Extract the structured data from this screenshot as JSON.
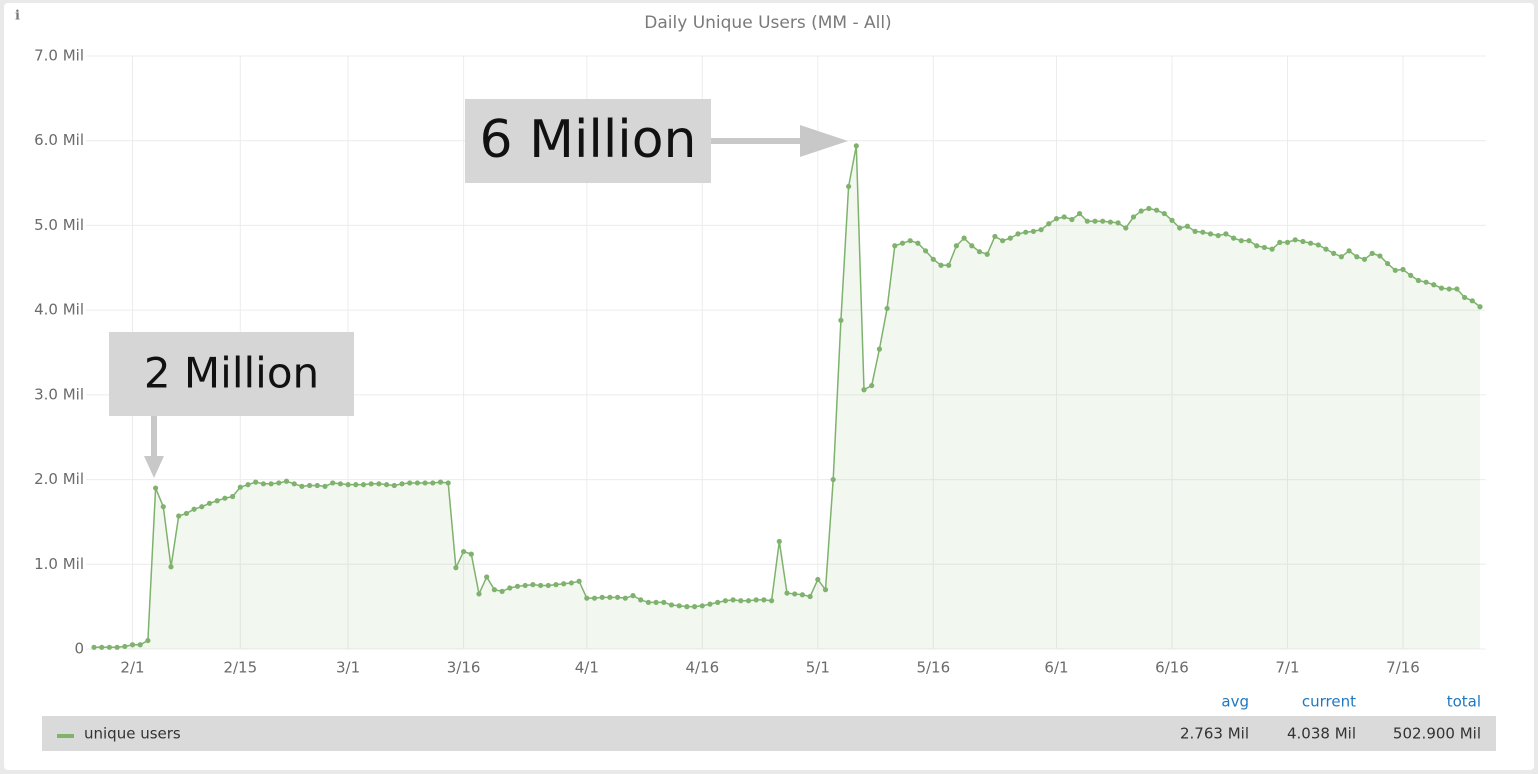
{
  "info_icon": "i",
  "chart_data": {
    "type": "line",
    "title": "Daily Unique Users (MM - All)",
    "x": [
      "1/27",
      "1/28",
      "1/29",
      "1/30",
      "1/31",
      "2/1",
      "2/2",
      "2/3",
      "2/4",
      "2/5",
      "2/6",
      "2/7",
      "2/8",
      "2/9",
      "2/10",
      "2/11",
      "2/12",
      "2/13",
      "2/14",
      "2/15",
      "2/16",
      "2/17",
      "2/18",
      "2/19",
      "2/20",
      "2/21",
      "2/22",
      "2/23",
      "2/24",
      "2/25",
      "2/26",
      "2/27",
      "2/28",
      "3/1",
      "3/2",
      "3/3",
      "3/4",
      "3/5",
      "3/6",
      "3/7",
      "3/8",
      "3/9",
      "3/10",
      "3/11",
      "3/12",
      "3/13",
      "3/14",
      "3/15",
      "3/16",
      "3/17",
      "3/18",
      "3/19",
      "3/20",
      "3/21",
      "3/22",
      "3/23",
      "3/24",
      "3/25",
      "3/26",
      "3/27",
      "3/28",
      "3/29",
      "3/30",
      "3/31",
      "4/1",
      "4/2",
      "4/3",
      "4/4",
      "4/5",
      "4/6",
      "4/7",
      "4/8",
      "4/9",
      "4/10",
      "4/11",
      "4/12",
      "4/13",
      "4/14",
      "4/15",
      "4/16",
      "4/17",
      "4/18",
      "4/19",
      "4/20",
      "4/21",
      "4/22",
      "4/23",
      "4/24",
      "4/25",
      "4/26",
      "4/27",
      "4/28",
      "4/29",
      "4/30",
      "5/1",
      "5/2",
      "5/3",
      "5/4",
      "5/5",
      "5/6",
      "5/7",
      "5/8",
      "5/9",
      "5/10",
      "5/11",
      "5/12",
      "5/13",
      "5/14",
      "5/15",
      "5/16",
      "5/17",
      "5/18",
      "5/19",
      "5/20",
      "5/21",
      "5/22",
      "5/23",
      "5/24",
      "5/25",
      "5/26",
      "5/27",
      "5/28",
      "5/29",
      "5/30",
      "5/31",
      "6/1",
      "6/2",
      "6/3",
      "6/4",
      "6/5",
      "6/6",
      "6/7",
      "6/8",
      "6/9",
      "6/10",
      "6/11",
      "6/12",
      "6/13",
      "6/14",
      "6/15",
      "6/16",
      "6/17",
      "6/18",
      "6/19",
      "6/20",
      "6/21",
      "6/22",
      "6/23",
      "6/24",
      "6/25",
      "6/26",
      "6/27",
      "6/28",
      "6/29",
      "6/30",
      "7/1",
      "7/2",
      "7/3",
      "7/4",
      "7/5",
      "7/6",
      "7/7",
      "7/8",
      "7/9",
      "7/10",
      "7/11",
      "7/12",
      "7/13",
      "7/14",
      "7/15",
      "7/16",
      "7/17",
      "7/18",
      "7/19",
      "7/20",
      "7/21",
      "7/22",
      "7/23",
      "7/24",
      "7/25",
      "7/26"
    ],
    "series": [
      {
        "name": "unique users",
        "color": "#7eb26d",
        "values": [
          0.02,
          0.02,
          0.02,
          0.02,
          0.03,
          0.05,
          0.05,
          0.1,
          1.9,
          1.68,
          0.97,
          1.57,
          1.6,
          1.65,
          1.68,
          1.72,
          1.75,
          1.78,
          1.8,
          1.91,
          1.94,
          1.97,
          1.95,
          1.95,
          1.96,
          1.98,
          1.95,
          1.92,
          1.93,
          1.93,
          1.92,
          1.96,
          1.95,
          1.94,
          1.94,
          1.94,
          1.95,
          1.95,
          1.94,
          1.93,
          1.95,
          1.96,
          1.96,
          1.96,
          1.96,
          1.97,
          1.96,
          0.96,
          1.15,
          1.12,
          0.65,
          0.85,
          0.7,
          0.68,
          0.72,
          0.74,
          0.75,
          0.76,
          0.75,
          0.75,
          0.76,
          0.77,
          0.78,
          0.8,
          0.6,
          0.6,
          0.61,
          0.61,
          0.61,
          0.6,
          0.63,
          0.58,
          0.55,
          0.55,
          0.55,
          0.52,
          0.51,
          0.5,
          0.5,
          0.51,
          0.53,
          0.55,
          0.57,
          0.58,
          0.57,
          0.57,
          0.58,
          0.58,
          0.57,
          1.27,
          0.66,
          0.65,
          0.64,
          0.62,
          0.82,
          0.7,
          2.0,
          3.88,
          5.46,
          5.94,
          3.06,
          3.11,
          3.54,
          4.02,
          4.76,
          4.79,
          4.82,
          4.79,
          4.7,
          4.6,
          4.53,
          4.53,
          4.76,
          4.85,
          4.76,
          4.69,
          4.66,
          4.87,
          4.82,
          4.85,
          4.9,
          4.92,
          4.93,
          4.95,
          5.02,
          5.08,
          5.1,
          5.07,
          5.14,
          5.05,
          5.05,
          5.05,
          5.04,
          5.03,
          4.97,
          5.1,
          5.17,
          5.2,
          5.18,
          5.14,
          5.06,
          4.97,
          4.99,
          4.93,
          4.92,
          4.9,
          4.88,
          4.9,
          4.85,
          4.82,
          4.82,
          4.76,
          4.74,
          4.72,
          4.8,
          4.8,
          4.83,
          4.81,
          4.79,
          4.77,
          4.72,
          4.67,
          4.63,
          4.7,
          4.63,
          4.6,
          4.67,
          4.64,
          4.55,
          4.47,
          4.48,
          4.41,
          4.35,
          4.33,
          4.3,
          4.26,
          4.25,
          4.25,
          4.15,
          4.11,
          4.04
        ]
      }
    ],
    "xticks": [
      "2/1",
      "2/15",
      "3/1",
      "3/16",
      "4/1",
      "4/16",
      "5/1",
      "5/16",
      "6/1",
      "6/16",
      "7/1",
      "7/16"
    ],
    "ylim": [
      0,
      7
    ],
    "yticks": [
      0,
      {
        "value": 1,
        "label": "1.0 Mil"
      },
      {
        "value": 2,
        "label": "2.0 Mil"
      },
      {
        "value": 3,
        "label": "3.0 Mil"
      },
      {
        "value": 4,
        "label": "4.0 Mil"
      },
      {
        "value": 5,
        "label": "5.0 Mil"
      },
      {
        "value": 6,
        "label": "6.0 Mil"
      },
      {
        "value": 7,
        "label": "7.0 Mil"
      }
    ],
    "grid": true,
    "area_fill": true,
    "annotations": [
      {
        "text": "2 Million"
      },
      {
        "text": "6 Million"
      }
    ],
    "legend_columns": [
      "avg",
      "current",
      "total"
    ],
    "legend_values": [
      "2.763 Mil",
      "4.038 Mil",
      "502.900 Mil"
    ]
  }
}
